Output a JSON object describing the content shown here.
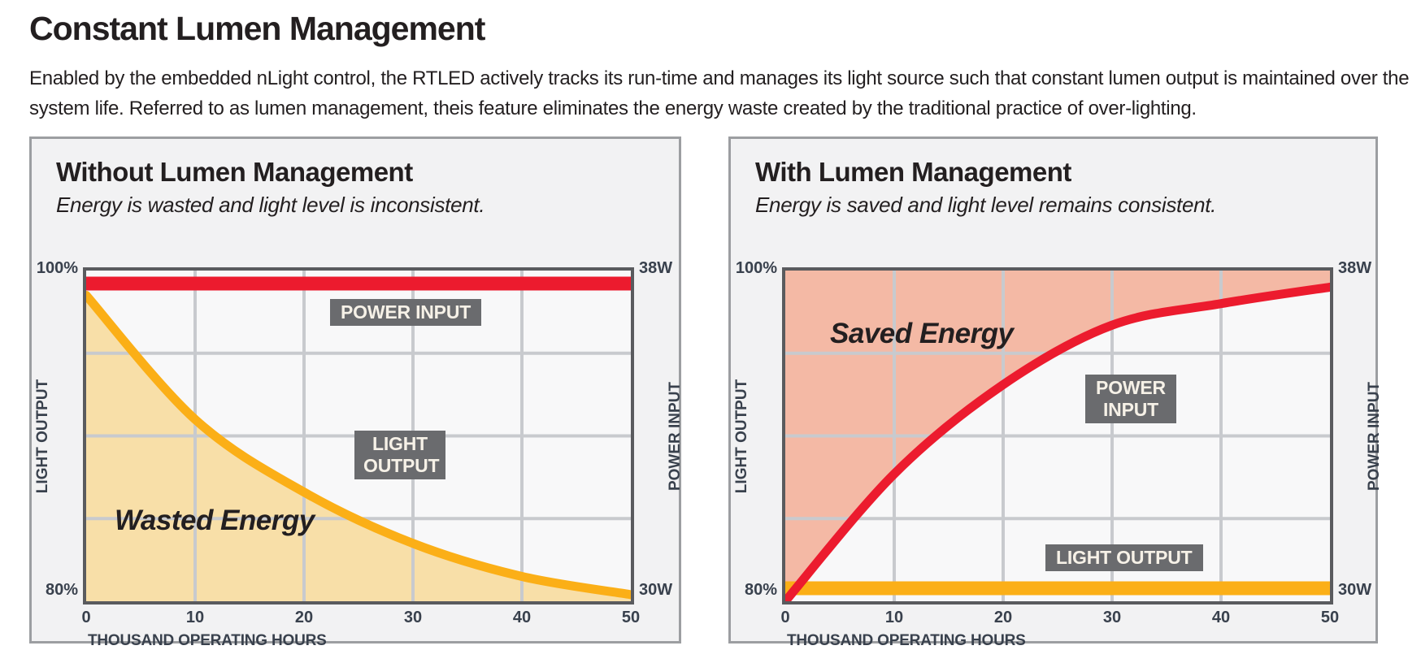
{
  "page": {
    "title": "Constant Lumen Management",
    "description": "Enabled by the embedded nLight control, the RTLED actively tracks its run-time and manages its light source such that constant lumen output is maintained over the system life. Referred to as lumen management, theis feature eliminates the energy waste created by the traditional practice of over-lighting."
  },
  "colors": {
    "power_red": "#EC1B2E",
    "light_yellow": "#FBAF17",
    "wasted_fill": "#F8DFA8",
    "saved_fill": "#F4B9A5",
    "badge_gray": "#6A6B6E",
    "grid": "#C8CACE",
    "plot_border": "#5A5B5E",
    "panel_bg": "#F2F2F3",
    "axis_text": "#39414D"
  },
  "chart_data": [
    {
      "type": "line",
      "title": "Without Lumen Management",
      "subtitle": "Energy is wasted and light level is inconsistent.",
      "xlabel": "THOUSAND OPERATING HOURS",
      "x_ticks": [
        0,
        10,
        20,
        30,
        40,
        50
      ],
      "xlim": [
        0,
        50
      ],
      "ylabel_left": "LIGHT OUTPUT",
      "ylabel_right": "POWER INPUT",
      "y_left_ticks": [
        "100%",
        "80%"
      ],
      "y_right_ticks": [
        "38W",
        "30W"
      ],
      "ylim_left_percent": [
        80,
        100
      ],
      "ylim_right_watts": [
        30,
        38
      ],
      "grid": true,
      "area_label": "Wasted Energy",
      "series": [
        {
          "name": "POWER INPUT",
          "color": "#EC1B2E",
          "flat": true,
          "x": [
            0,
            50
          ],
          "percent": [
            100,
            100
          ],
          "watts": [
            38,
            38
          ]
        },
        {
          "name": "LIGHT OUTPUT",
          "color": "#FBAF17",
          "x": [
            0,
            10,
            20,
            30,
            40,
            50
          ],
          "percent": [
            98.5,
            91,
            86.6,
            83.5,
            81.5,
            80.4
          ],
          "fill": "below",
          "fill_color": "#F8DFA8"
        }
      ]
    },
    {
      "type": "line",
      "title": "With Lumen Management",
      "subtitle": "Energy is saved and light level remains consistent.",
      "xlabel": "THOUSAND OPERATING HOURS",
      "x_ticks": [
        0,
        10,
        20,
        30,
        40,
        50
      ],
      "xlim": [
        0,
        50
      ],
      "ylabel_left": "LIGHT OUTPUT",
      "ylabel_right": "POWER INPUT",
      "y_left_ticks": [
        "100%",
        "80%"
      ],
      "y_right_ticks": [
        "38W",
        "30W"
      ],
      "ylim_left_percent": [
        80,
        100
      ],
      "ylim_right_watts": [
        30,
        38
      ],
      "grid": true,
      "area_label": "Saved Energy",
      "series": [
        {
          "name": "POWER INPUT",
          "color": "#EC1B2E",
          "x": [
            0,
            10,
            20,
            30,
            40,
            50
          ],
          "percent": [
            80,
            87.7,
            93.1,
            96.7,
            98,
            99
          ],
          "fill": "above",
          "fill_color": "#F4B9A5"
        },
        {
          "name": "LIGHT OUTPUT",
          "color": "#FBAF17",
          "flat": true,
          "x": [
            0,
            50
          ],
          "percent": [
            80,
            80
          ],
          "watts": [
            30,
            30
          ]
        }
      ]
    }
  ]
}
